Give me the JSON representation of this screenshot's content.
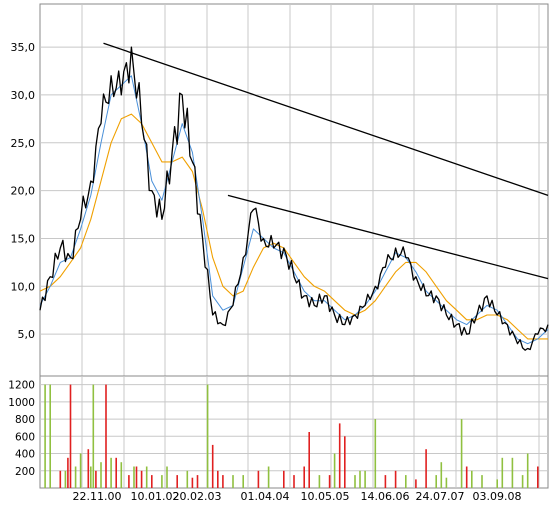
{
  "chart_data": [
    {
      "type": "line",
      "panel": "price",
      "x_tick_labels": [
        "22.11.00",
        "10.01.02",
        "20.02.03",
        "01.04.04",
        "10.05.05",
        "14.06.06",
        "24.07.07",
        "03.09.08"
      ],
      "y_tick_labels": [
        "5,0",
        "10,0",
        "15,0",
        "20,0",
        "25,0",
        "30,0",
        "35,0"
      ],
      "y_ticks": [
        5,
        10,
        15,
        20,
        25,
        30,
        35
      ],
      "ylim": [
        0,
        39.5
      ],
      "xlim": [
        0,
        100
      ],
      "grid": true,
      "colors": {
        "price": "#000000",
        "ma_short": "#4a90d9",
        "ma_long": "#f0a000",
        "trend": "#000000"
      },
      "x": [
        0,
        2,
        4,
        6,
        8,
        10,
        12,
        14,
        16,
        18,
        20,
        22,
        24,
        26,
        28,
        30,
        32,
        34,
        36,
        38,
        40,
        42,
        44,
        46,
        48,
        50,
        52,
        54,
        56,
        58,
        60,
        62,
        64,
        66,
        68,
        70,
        72,
        74,
        76,
        78,
        80,
        82,
        84,
        86,
        88,
        90,
        92,
        94,
        96,
        98,
        100
      ],
      "series": [
        {
          "values": [
            7.5,
            11,
            14,
            13,
            17,
            21,
            27,
            32,
            30,
            35,
            27,
            20,
            17,
            24,
            30,
            23,
            15,
            7,
            6,
            8,
            13,
            18,
            15,
            14,
            14,
            11,
            9,
            8,
            9,
            7,
            6,
            7,
            8,
            10,
            12,
            14,
            13,
            11,
            9,
            9,
            7,
            6,
            5,
            7,
            9,
            7,
            6,
            4,
            3.5,
            5,
            6
          ]
        },
        {
          "values": [
            8,
            10,
            12.5,
            13,
            16,
            19.5,
            25,
            30,
            31,
            32,
            27,
            21,
            19,
            23,
            27,
            24,
            17,
            9,
            7.5,
            8,
            12,
            16,
            15,
            14,
            13.5,
            11.5,
            9.5,
            8.5,
            8.5,
            7.5,
            6.5,
            7,
            8,
            9.5,
            11.5,
            13.5,
            13,
            11.5,
            9.5,
            8.5,
            7.5,
            6.5,
            6,
            7,
            8,
            7.5,
            6,
            4.5,
            4,
            4.5,
            5.5
          ]
        },
        {
          "values": [
            9.5,
            10,
            11,
            12.5,
            14,
            17,
            21,
            25,
            27.5,
            28,
            27,
            25,
            23,
            23,
            23.5,
            22,
            18,
            13,
            10,
            9,
            9.5,
            12,
            14,
            14.5,
            14,
            12.5,
            11,
            10,
            9.5,
            8.5,
            7.5,
            7,
            7.5,
            8.5,
            10,
            11.5,
            12.5,
            12.5,
            11.5,
            10,
            8.5,
            7.5,
            6.5,
            6.5,
            7,
            7,
            6.5,
            5.5,
            4.5,
            4.5,
            4.5
          ]
        }
      ],
      "trend_lines": [
        {
          "from": [
            12.5,
            35.4
          ],
          "to": [
            100,
            19.5
          ]
        },
        {
          "from": [
            37,
            19.5
          ],
          "to": [
            100,
            10.8
          ]
        }
      ]
    },
    {
      "type": "bar",
      "panel": "volume",
      "y_tick_labels": [
        "200",
        "400",
        "600",
        "800",
        "1000",
        "1200"
      ],
      "y_ticks": [
        200,
        400,
        600,
        800,
        1000,
        1200
      ],
      "ylim": [
        0,
        1300
      ],
      "xlim": [
        0,
        100
      ],
      "grid": true,
      "colors": {
        "up": "#90c040",
        "down": "#e02020"
      },
      "x": [
        1,
        2,
        4,
        5,
        5.5,
        6,
        7,
        8,
        9.5,
        10,
        10.5,
        11,
        12,
        13,
        14,
        15,
        16,
        17.5,
        18.5,
        19,
        20,
        21,
        22,
        24,
        25,
        27,
        29,
        30,
        31,
        33,
        34,
        35,
        36,
        38,
        40,
        43,
        45,
        48,
        50,
        52,
        53,
        55,
        57,
        58,
        59,
        60,
        62,
        63,
        64,
        66,
        68,
        70,
        72,
        74,
        76,
        78,
        79,
        80,
        83,
        84,
        85,
        87,
        90,
        91,
        93,
        95,
        96,
        98
      ],
      "values": [
        1200,
        1200,
        200,
        200,
        350,
        1200,
        250,
        400,
        450,
        250,
        1200,
        200,
        300,
        1200,
        350,
        350,
        300,
        150,
        250,
        250,
        200,
        250,
        150,
        150,
        250,
        150,
        200,
        120,
        150,
        1200,
        500,
        200,
        150,
        150,
        150,
        200,
        250,
        200,
        150,
        250,
        650,
        150,
        150,
        400,
        750,
        600,
        150,
        200,
        200,
        800,
        150,
        200,
        150,
        100,
        450,
        150,
        300,
        120,
        800,
        250,
        200,
        150,
        100,
        350,
        350,
        150,
        400,
        250
      ],
      "directions": [
        "up",
        "up",
        "down",
        "up",
        "down",
        "down",
        "up",
        "up",
        "down",
        "up",
        "up",
        "down",
        "up",
        "down",
        "up",
        "down",
        "up",
        "down",
        "up",
        "down",
        "down",
        "up",
        "down",
        "up",
        "up",
        "down",
        "up",
        "down",
        "down",
        "up",
        "down",
        "down",
        "down",
        "up",
        "up",
        "down",
        "up",
        "down",
        "down",
        "down",
        "down",
        "up",
        "down",
        "up",
        "down",
        "down",
        "up",
        "up",
        "up",
        "up",
        "down",
        "down",
        "up",
        "down",
        "down",
        "up",
        "up",
        "up",
        "up",
        "down",
        "up",
        "up",
        "up",
        "up",
        "up",
        "up",
        "up",
        "down"
      ]
    }
  ]
}
